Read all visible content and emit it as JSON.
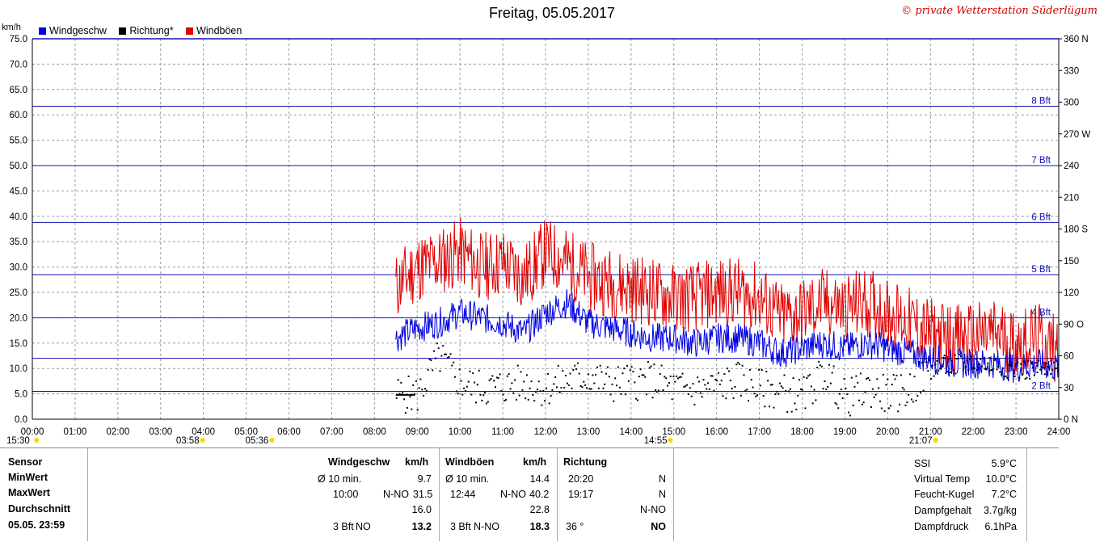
{
  "title": "Freitag, 05.05.2017",
  "copyright": "© private Wetterstation Süderlügum",
  "legend": [
    {
      "label": "Windgeschw",
      "color": "#0000e0"
    },
    {
      "label": "Richtung*",
      "color": "#000000"
    },
    {
      "label": "Windböen",
      "color": "#e00000"
    }
  ],
  "unit_left": "km/h",
  "chart_data": {
    "type": "line",
    "x_unit": "hours",
    "xlim": [
      0,
      24
    ],
    "ylim": [
      0,
      75
    ],
    "ylim_right": [
      0,
      360
    ],
    "grid": true,
    "x_ticks": [
      "00:00",
      "01:00",
      "02:00",
      "03:00",
      "04:00",
      "05:00",
      "06:00",
      "07:00",
      "08:00",
      "09:00",
      "10:00",
      "11:00",
      "12:00",
      "13:00",
      "14:00",
      "15:00",
      "16:00",
      "17:00",
      "18:00",
      "19:00",
      "20:00",
      "21:00",
      "22:00",
      "23:00",
      "24:00"
    ],
    "y_ticks": [
      "0.0",
      "5.0",
      "10.0",
      "15.0",
      "20.0",
      "25.0",
      "30.0",
      "35.0",
      "40.0",
      "45.0",
      "50.0",
      "55.0",
      "60.0",
      "65.0",
      "70.0",
      "75.0"
    ],
    "y_right_ticks": [
      {
        "v": 0,
        "label": "0 N"
      },
      {
        "v": 30,
        "label": "30"
      },
      {
        "v": 60,
        "label": "60"
      },
      {
        "v": 90,
        "label": "90 O"
      },
      {
        "v": 120,
        "label": "120"
      },
      {
        "v": 150,
        "label": "150"
      },
      {
        "v": 180,
        "label": "180 S"
      },
      {
        "v": 210,
        "label": "210"
      },
      {
        "v": 240,
        "label": "240"
      },
      {
        "v": 270,
        "label": "270 W"
      },
      {
        "v": 300,
        "label": "300"
      },
      {
        "v": 330,
        "label": "330"
      },
      {
        "v": 360,
        "label": "360 N"
      }
    ],
    "beaufort_lines": [
      {
        "kmh": 5.5,
        "label": "2 Bft"
      },
      {
        "kmh": 12.0,
        "label": ""
      },
      {
        "kmh": 20.0,
        "label": "4 Bft"
      },
      {
        "kmh": 28.5,
        "label": "5 Bft"
      },
      {
        "kmh": 38.8,
        "label": "6 Bft"
      },
      {
        "kmh": 50.0,
        "label": "7 Bft"
      },
      {
        "kmh": 61.7,
        "label": "8 Bft"
      }
    ],
    "series": [
      {
        "name": "Windgeschw",
        "color": "#0000e0",
        "x": [
          8.5,
          9.0,
          9.5,
          10.0,
          10.5,
          11.0,
          11.5,
          12.0,
          12.5,
          13.0,
          13.5,
          14.0,
          14.5,
          15.0,
          15.5,
          16.0,
          16.5,
          17.0,
          17.5,
          18.0,
          18.5,
          19.0,
          19.5,
          20.0,
          20.5,
          21.0,
          21.5,
          22.0,
          22.5,
          23.0,
          23.5,
          24.0
        ],
        "values": [
          16,
          18,
          19,
          21,
          20,
          19,
          17,
          21,
          23,
          19,
          18,
          17,
          16,
          16,
          15,
          16,
          16,
          15,
          13,
          14,
          15,
          14,
          15,
          14,
          13,
          12,
          11,
          11,
          11,
          10,
          11,
          10
        ]
      },
      {
        "name": "Windböen",
        "color": "#e00000",
        "x": [
          8.5,
          9.0,
          9.5,
          10.0,
          10.5,
          11.0,
          11.5,
          12.0,
          12.5,
          13.0,
          13.5,
          14.0,
          14.5,
          15.0,
          15.5,
          16.0,
          16.5,
          17.0,
          17.5,
          18.0,
          18.5,
          19.0,
          19.5,
          20.0,
          20.5,
          21.0,
          21.5,
          22.0,
          22.5,
          23.0,
          23.5,
          24.0
        ],
        "values": [
          26,
          30,
          31,
          33,
          30,
          31,
          28,
          33,
          31,
          28,
          27,
          26,
          25,
          24,
          24,
          25,
          25,
          24,
          20,
          21,
          23,
          22,
          23,
          21,
          19,
          17,
          16,
          16,
          17,
          15,
          16,
          14
        ]
      },
      {
        "name": "Richtung*",
        "color": "#000000",
        "axis": "right",
        "x": [
          8.5,
          9.0,
          9.5,
          10.0,
          10.5,
          11.0,
          11.5,
          12.0,
          12.5,
          13.0,
          13.5,
          14.0,
          14.5,
          15.0,
          15.5,
          16.0,
          16.5,
          17.0,
          17.5,
          18.0,
          18.5,
          19.0,
          19.5,
          20.0,
          20.5,
          21.0,
          21.5,
          22.0,
          22.5,
          23.0,
          23.5,
          24.0
        ],
        "values": [
          24,
          24,
          60,
          35,
          30,
          32,
          35,
          30,
          38,
          42,
          34,
          36,
          38,
          30,
          29,
          32,
          38,
          30,
          27,
          22,
          45,
          20,
          30,
          24,
          28,
          50,
          52,
          55,
          52,
          48,
          47,
          45
        ]
      }
    ]
  },
  "sun_markers": [
    {
      "x": 0.1,
      "label": "15:30"
    },
    {
      "x": 3.98,
      "label": "03:58"
    },
    {
      "x": 5.6,
      "label": "05:36"
    },
    {
      "x": 14.92,
      "label": "14:55"
    },
    {
      "x": 21.12,
      "label": "21:07"
    }
  ],
  "table": {
    "sensor_col": [
      "Sensor",
      "MinWert",
      "MaxWert",
      "Durchschnitt",
      "05.05. 23:59"
    ],
    "wind": {
      "header": "Windgeschw",
      "unit": "km/h",
      "min": {
        "label": "Ø 10 min.",
        "value": "9.7"
      },
      "max": {
        "time": "10:00",
        "dir": "N-NO",
        "value": "31.5"
      },
      "avg": "16.0",
      "now": {
        "bft": "3 Bft",
        "dir": "NO",
        "value": "13.2"
      }
    },
    "gust": {
      "header": "Windböen",
      "unit": "km/h",
      "min": {
        "label": "Ø 10 min.",
        "value": "14.4"
      },
      "max": {
        "time": "12:44",
        "dir": "N-NO",
        "value": "40.2"
      },
      "avg": "22.8",
      "now": {
        "bft": "3 Bft",
        "dir": "N-NO",
        "value": "18.3"
      }
    },
    "dir": {
      "header": "Richtung",
      "min": {
        "time": "20:20",
        "value": "N"
      },
      "max": {
        "time": "19:17",
        "value": "N"
      },
      "avg": "N-NO",
      "now": {
        "deg": "36 °",
        "value": "NO"
      }
    },
    "right": [
      {
        "label": "SSI",
        "value": "5.9°C"
      },
      {
        "label": "Virtual Temp",
        "value": "10.0°C"
      },
      {
        "label": "Feucht-Kugel",
        "value": "7.2°C"
      },
      {
        "label": "Dampfgehalt",
        "value": "3.7g/kg"
      },
      {
        "label": "Dampfdruck",
        "value": "6.1hPa"
      }
    ]
  }
}
